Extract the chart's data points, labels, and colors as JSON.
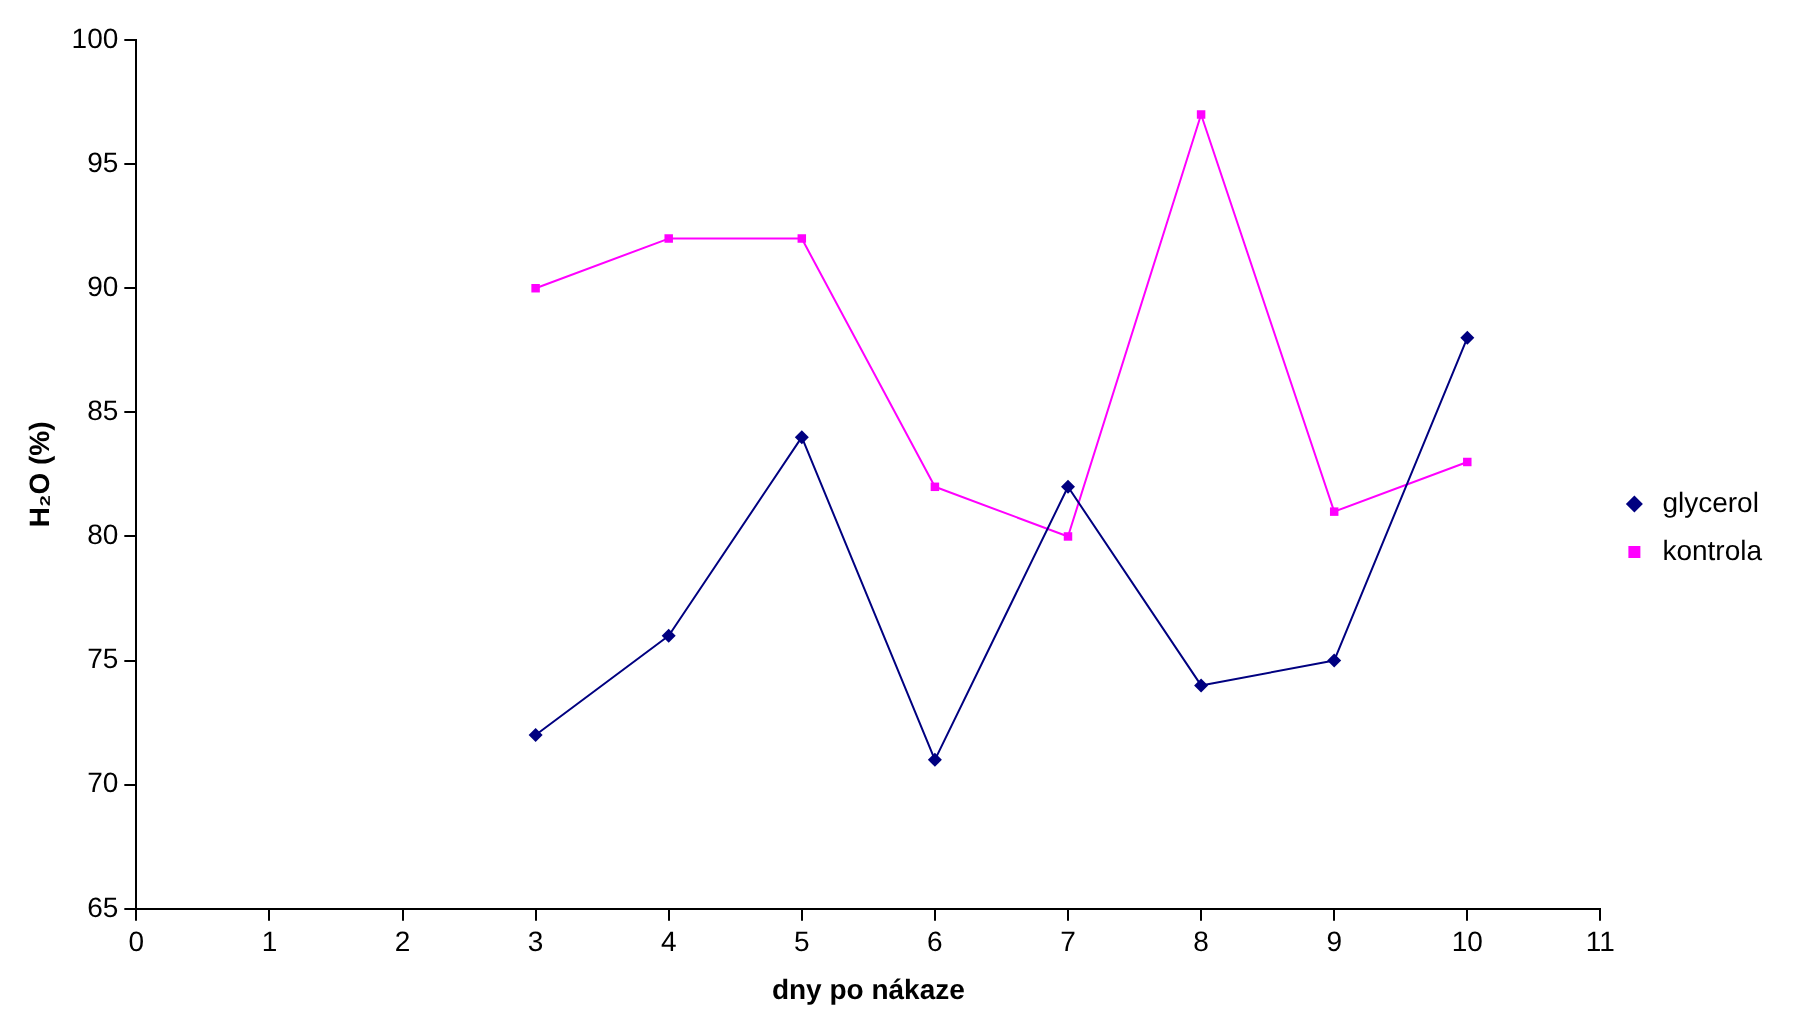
{
  "chart_data": {
    "type": "line",
    "xlabel": "dny po nákaze",
    "ylabel": "H₂O (%)",
    "x": [
      3,
      4,
      5,
      6,
      7,
      8,
      9,
      10
    ],
    "series": [
      {
        "name": "glycerol",
        "color": "#000080",
        "marker": "diamond",
        "values": [
          72,
          76,
          84,
          71,
          82,
          74,
          75,
          88
        ]
      },
      {
        "name": "kontrola",
        "color": "#ff00ff",
        "marker": "square",
        "values": [
          90,
          92,
          92,
          82,
          80,
          97,
          81,
          83
        ]
      }
    ],
    "xlim": [
      0,
      11
    ],
    "xticks": [
      0,
      1,
      2,
      3,
      4,
      5,
      6,
      7,
      8,
      9,
      10,
      11
    ],
    "ylim": [
      65,
      100
    ],
    "yticks": [
      65,
      70,
      75,
      80,
      85,
      90,
      95,
      100
    ],
    "grid": false,
    "legend": "right",
    "line_style": "solid"
  }
}
